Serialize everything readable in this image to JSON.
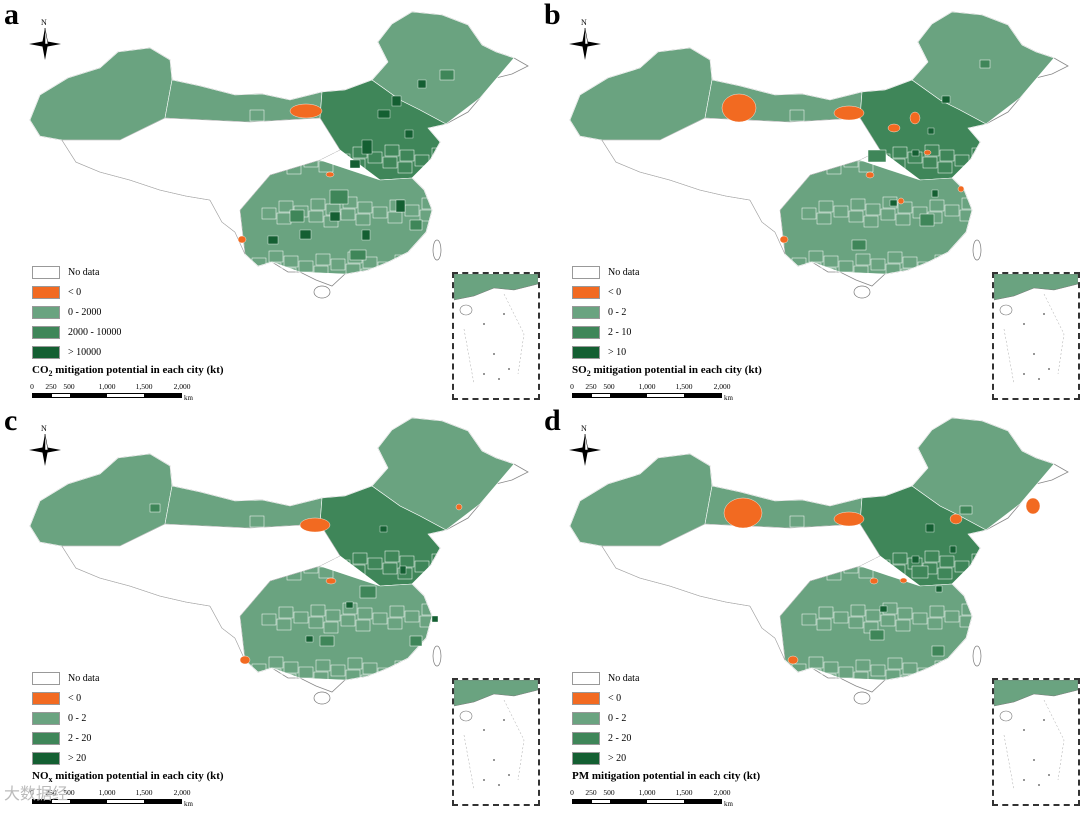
{
  "panels": [
    {
      "letter": "a",
      "legend": [
        {
          "label": "No data",
          "color": "#ffffff"
        },
        {
          "label": "< 0",
          "color": "#f26a21"
        },
        {
          "label": "0 - 2000",
          "color": "#6aa380"
        },
        {
          "label": "2000 - 10000",
          "color": "#3f8659"
        },
        {
          "label": "> 10000",
          "color": "#145f32"
        }
      ],
      "caption_pre": "CO",
      "caption_sub": "2",
      "caption_post": " mitigation potential in each city (kt)"
    },
    {
      "letter": "b",
      "legend": [
        {
          "label": "No data",
          "color": "#ffffff"
        },
        {
          "label": "< 0",
          "color": "#f26a21"
        },
        {
          "label": "0 - 2",
          "color": "#6aa380"
        },
        {
          "label": "2 - 10",
          "color": "#3f8659"
        },
        {
          "label": "> 10",
          "color": "#145f32"
        }
      ],
      "caption_pre": "SO",
      "caption_sub": "2",
      "caption_post": " mitigation potential in each city (kt)"
    },
    {
      "letter": "c",
      "legend": [
        {
          "label": "No data",
          "color": "#ffffff"
        },
        {
          "label": "< 0",
          "color": "#f26a21"
        },
        {
          "label": "0 - 2",
          "color": "#6aa380"
        },
        {
          "label": "2 - 20",
          "color": "#3f8659"
        },
        {
          "label": "> 20",
          "color": "#145f32"
        }
      ],
      "caption_pre": "NO",
      "caption_sub": "x",
      "caption_post": " mitigation potential in each city (kt)"
    },
    {
      "letter": "d",
      "legend": [
        {
          "label": "No data",
          "color": "#ffffff"
        },
        {
          "label": "< 0",
          "color": "#f26a21"
        },
        {
          "label": "0 - 2",
          "color": "#6aa380"
        },
        {
          "label": "2 - 20",
          "color": "#3f8659"
        },
        {
          "label": "> 20",
          "color": "#145f32"
        }
      ],
      "caption_pre": "PM",
      "caption_sub": "",
      "caption_post": " mitigation potential in each city (kt)"
    }
  ],
  "north_label": "N",
  "scale_ticks": [
    "0",
    "250",
    "500",
    "1,000",
    "1,500",
    "2,000"
  ],
  "scale_unit": "km",
  "watermark": "大数据经"
}
